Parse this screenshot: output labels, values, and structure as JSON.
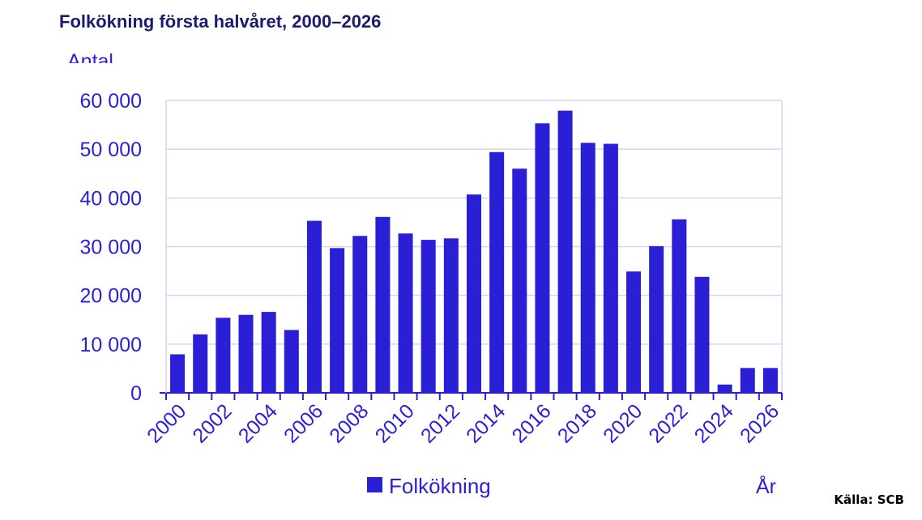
{
  "title": "Folkökning första halvåret, 2000–2026",
  "source": "Källa: SCB",
  "chart_data": {
    "type": "bar",
    "ylabel": "Antal",
    "xlabel": "År",
    "ylim": [
      0,
      60000
    ],
    "yticks": [
      0,
      10000,
      20000,
      30000,
      40000,
      50000,
      60000
    ],
    "ytick_labels": [
      "0",
      "10 000",
      "20 000",
      "30 000",
      "40 000",
      "50 000",
      "60 000"
    ],
    "xtick_labels": [
      "2000",
      "2002",
      "2004",
      "2006",
      "2008",
      "2010",
      "2012",
      "2014",
      "2016",
      "2018",
      "2020",
      "2022",
      "2024",
      "2026"
    ],
    "categories": [
      2000,
      2001,
      2002,
      2003,
      2004,
      2005,
      2006,
      2007,
      2008,
      2009,
      2010,
      2011,
      2012,
      2013,
      2014,
      2015,
      2016,
      2017,
      2018,
      2019,
      2020,
      2021,
      2022,
      2023,
      2024,
      2025,
      2026
    ],
    "series": [
      {
        "name": "Folkökning",
        "color": "#2b1fd6",
        "values": [
          7900,
          12000,
          15400,
          16000,
          16600,
          12900,
          35300,
          29700,
          32200,
          36100,
          32700,
          31400,
          31700,
          40700,
          49400,
          46000,
          55300,
          57900,
          51300,
          51100,
          24900,
          30100,
          35600,
          23800,
          1700,
          5100,
          5100
        ]
      }
    ],
    "grid": true,
    "legend": "bottom-center"
  }
}
